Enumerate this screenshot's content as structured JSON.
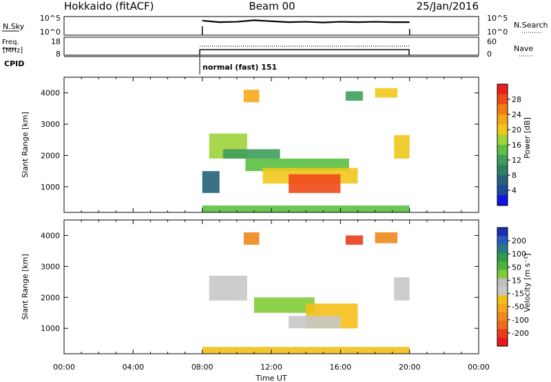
{
  "header": {
    "title_left": "Hokkaido (fitACF)",
    "title_center": "Beam 00",
    "title_right": "25/Jan/2016"
  },
  "top_panels": {
    "nsky": {
      "label": "N.Sky",
      "tick_top": "10^5",
      "tick_bottom": "10^0",
      "right_tick_top": "10^5",
      "right_tick_bottom": "10^0",
      "right_label": "N.Search"
    },
    "freq": {
      "label_top": "Freq.",
      "label_bottom": "[MHz]",
      "tick_top": "18",
      "tick_bottom": "8",
      "right_tick_top": "60",
      "right_tick_bottom": "0",
      "right_label": "Nave"
    },
    "cpid": {
      "label": "CPID",
      "mode_text": "normal (fast) 151"
    }
  },
  "axes": {
    "x_ticks": [
      "00:00",
      "04:00",
      "08:00",
      "12:00",
      "16:00",
      "20:00",
      "00:00"
    ],
    "x_label": "Time UT",
    "y_label": "Slant Range [km]",
    "y_ticks": [
      "1000",
      "2000",
      "3000",
      "4000"
    ]
  },
  "colorbars": {
    "power": {
      "title": "Power [dB]",
      "labels": [
        "28",
        "24",
        "20",
        "16",
        "12",
        "8",
        "4"
      ],
      "colors": [
        "#e8201c",
        "#ee4a1a",
        "#f07d18",
        "#f4a818",
        "#f0c81c",
        "#9fd33a",
        "#5cc040",
        "#3d9e5c",
        "#2f7f66",
        "#26617c",
        "#1f47a0",
        "#1212e6"
      ]
    },
    "velocity": {
      "title": "Velocity [m s⁻¹]",
      "labels": [
        "200",
        "100",
        "50",
        "15",
        "-15",
        "-50",
        "-100",
        "-200"
      ],
      "colors": [
        "#1a2eb0",
        "#2a5ac0",
        "#2a7a86",
        "#2e9c4e",
        "#4cb43a",
        "#80cc38",
        "#c0c0c0",
        "#c8c8c8",
        "#f4c018",
        "#f4a818",
        "#f08a1c",
        "#ee6a1c",
        "#ea3c1c",
        "#e81a1c"
      ]
    }
  },
  "chart_data": [
    {
      "type": "heatmap",
      "name": "power",
      "xlabel": "Time UT",
      "ylabel": "Slant Range [km]",
      "xlim": [
        0,
        24
      ],
      "ylim": [
        180,
        4500
      ],
      "colorbar_label": "Power [dB]",
      "regions": [
        {
          "x": [
            10.4,
            11.3
          ],
          "y": [
            3700,
            4100
          ],
          "value": 22
        },
        {
          "x": [
            16.3,
            17.3
          ],
          "y": [
            3750,
            4050
          ],
          "value": 12
        },
        {
          "x": [
            18.0,
            19.3
          ],
          "y": [
            3850,
            4150
          ],
          "value": 20
        },
        {
          "x": [
            8.4,
            10.6
          ],
          "y": [
            1900,
            2700
          ],
          "value": 16
        },
        {
          "x": [
            9.2,
            12.5
          ],
          "y": [
            1900,
            2200
          ],
          "value": 12
        },
        {
          "x": [
            19.1,
            20.0
          ],
          "y": [
            1900,
            2650
          ],
          "value": 18
        },
        {
          "x": [
            10.5,
            16.5
          ],
          "y": [
            1500,
            1900
          ],
          "value": 14
        },
        {
          "x": [
            11.5,
            17.0
          ],
          "y": [
            1100,
            1600
          ],
          "value": 20
        },
        {
          "x": [
            13.0,
            16.0
          ],
          "y": [
            800,
            1400
          ],
          "value": 26
        },
        {
          "x": [
            8.0,
            9.0
          ],
          "y": [
            800,
            1500
          ],
          "value": 6
        },
        {
          "x": [
            8.0,
            20.0
          ],
          "y": [
            180,
            400
          ],
          "value": 14
        }
      ]
    },
    {
      "type": "heatmap",
      "name": "velocity",
      "xlabel": "Time UT",
      "ylabel": "Slant Range [km]",
      "xlim": [
        0,
        24
      ],
      "ylim": [
        180,
        4500
      ],
      "colorbar_label": "Velocity [m s⁻¹]",
      "regions": [
        {
          "x": [
            10.4,
            11.3
          ],
          "y": [
            3700,
            4100
          ],
          "value": -150
        },
        {
          "x": [
            16.3,
            17.3
          ],
          "y": [
            3700,
            4000
          ],
          "value": -200
        },
        {
          "x": [
            18.0,
            19.3
          ],
          "y": [
            3750,
            4100
          ],
          "value": -150
        },
        {
          "x": [
            8.4,
            10.6
          ],
          "y": [
            1900,
            2700
          ],
          "value": 0
        },
        {
          "x": [
            19.1,
            20.0
          ],
          "y": [
            1900,
            2650
          ],
          "value": 0
        },
        {
          "x": [
            11.0,
            14.5
          ],
          "y": [
            1500,
            2000
          ],
          "value": 40
        },
        {
          "x": [
            14.0,
            17.0
          ],
          "y": [
            1000,
            1800
          ],
          "value": -40
        },
        {
          "x": [
            13.0,
            16.0
          ],
          "y": [
            1000,
            1400
          ],
          "value": 0
        },
        {
          "x": [
            8.0,
            20.0
          ],
          "y": [
            180,
            400
          ],
          "value": -40
        }
      ]
    },
    {
      "type": "line",
      "name": "nsky",
      "x": [
        8.0,
        9.0,
        10.0,
        11.0,
        12.0,
        13.0,
        14.0,
        15.0,
        16.0,
        17.0,
        18.0,
        19.0,
        20.0
      ],
      "y": [
        0.78,
        0.7,
        0.72,
        0.8,
        0.75,
        0.7,
        0.72,
        0.68,
        0.72,
        0.7,
        0.72,
        0.7,
        0.7
      ]
    }
  ]
}
